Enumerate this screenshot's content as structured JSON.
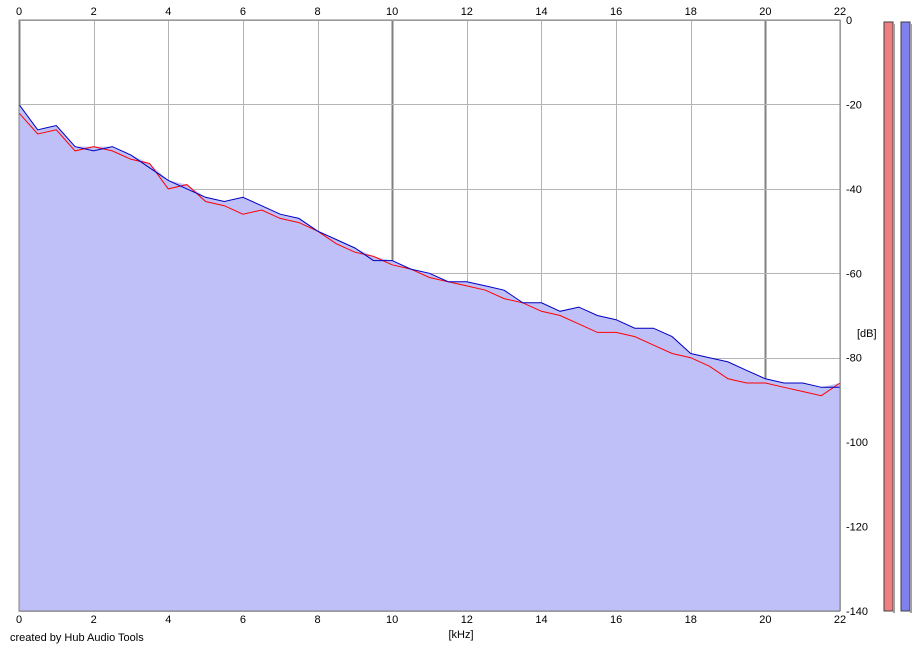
{
  "chart_data": {
    "type": "area",
    "title": "",
    "xlabel": "[kHz]",
    "ylabel": "[dB]",
    "xlim": [
      0,
      22
    ],
    "ylim": [
      -140,
      0
    ],
    "x_ticks": [
      0,
      2,
      4,
      6,
      8,
      10,
      12,
      14,
      16,
      18,
      20,
      22
    ],
    "y_ticks": [
      0,
      -20,
      -40,
      -60,
      -80,
      -100,
      -120,
      -140
    ],
    "grid": true,
    "colors": {
      "area_fill": "#c0c0f8",
      "channel_left": "#ff0000",
      "channel_right": "#0000c0",
      "grid": "#b4b4b4",
      "grid_major": "#808080"
    },
    "series": [
      {
        "color": "#ff0000",
        "x": [
          0,
          0.5,
          1,
          1.5,
          2,
          2.5,
          3,
          3.5,
          4,
          4.5,
          5,
          5.5,
          6,
          6.5,
          7,
          7.5,
          8,
          8.5,
          9,
          9.5,
          10,
          10.5,
          11,
          11.5,
          12,
          12.5,
          13,
          13.5,
          14,
          14.5,
          15,
          15.5,
          16,
          16.5,
          17,
          17.5,
          18,
          18.5,
          19,
          19.5,
          20,
          20.5,
          21,
          21.5,
          22
        ],
        "values": [
          -22,
          -27,
          -26,
          -31,
          -30,
          -31,
          -33,
          -34,
          -40,
          -39,
          -43,
          -44,
          -46,
          -45,
          -47,
          -48,
          -50,
          -53,
          -55,
          -56,
          -58,
          -59,
          -61,
          -62,
          -63,
          -64,
          -66,
          -67,
          -69,
          -70,
          -72,
          -74,
          -74,
          -75,
          -77,
          -79,
          -80,
          -82,
          -85,
          -86,
          -86,
          -87,
          -88,
          -89,
          -86
        ]
      },
      {
        "color": "#0000c0",
        "x": [
          0,
          0.5,
          1,
          1.5,
          2,
          2.5,
          3,
          3.5,
          4,
          4.5,
          5,
          5.5,
          6,
          6.5,
          7,
          7.5,
          8,
          8.5,
          9,
          9.5,
          10,
          10.5,
          11,
          11.5,
          12,
          12.5,
          13,
          13.5,
          14,
          14.5,
          15,
          15.5,
          16,
          16.5,
          17,
          17.5,
          18,
          18.5,
          19,
          19.5,
          20,
          20.5,
          21,
          21.5,
          22
        ],
        "values": [
          -20,
          -26,
          -25,
          -30,
          -31,
          -30,
          -32,
          -35,
          -38,
          -40,
          -42,
          -43,
          -42,
          -44,
          -46,
          -47,
          -50,
          -52,
          -54,
          -57,
          -57,
          -59,
          -60,
          -62,
          -62,
          -63,
          -64,
          -67,
          -67,
          -69,
          -68,
          -70,
          -71,
          -73,
          -73,
          -75,
          -79,
          -80,
          -81,
          -83,
          -85,
          -86,
          -86,
          -87,
          -87
        ]
      }
    ]
  },
  "credit_text": "created by Hub Audio Tools"
}
